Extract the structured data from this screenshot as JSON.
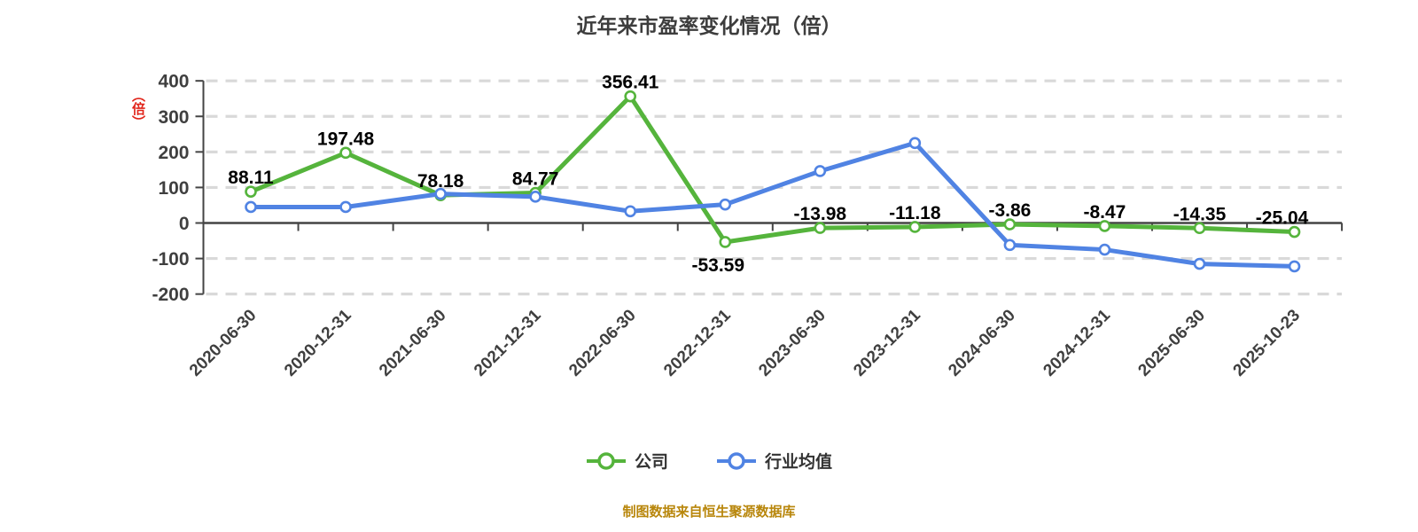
{
  "title": "近年来市盈率变化情况（倍）",
  "y_axis_unit": "（倍）",
  "footer": {
    "source_note": "制图数据来自恒生聚源数据库"
  },
  "colors": {
    "company": "#55b43c",
    "industry": "#5083e3",
    "gridline": "#d9d9d9",
    "axis": "#444444",
    "data_label": "#000000",
    "unit_stamp": "#e1251b",
    "source_note": "#b8860b"
  },
  "chart_data": {
    "type": "line",
    "title": "近年来市盈率变化情况（倍）",
    "categories": [
      "2020-06-30",
      "2020-12-31",
      "2021-06-30",
      "2021-12-31",
      "2022-06-30",
      "2022-12-31",
      "2023-06-30",
      "2023-12-31",
      "2024-06-30",
      "2024-12-31",
      "2025-06-30",
      "2025-10-23"
    ],
    "series": [
      {
        "name": "公司",
        "color": "#55b43c",
        "values": [
          88.11,
          197.48,
          78.18,
          84.77,
          356.41,
          -53.59,
          -13.98,
          -11.18,
          -3.86,
          -8.47,
          -14.35,
          -25.04
        ],
        "show_labels": true
      },
      {
        "name": "行业均值",
        "color": "#5083e3",
        "values": [
          45,
          45,
          82,
          74,
          33,
          52,
          146,
          225,
          -62,
          -75,
          -115,
          -122
        ],
        "show_labels": false,
        "values_estimated_from_pixels": true
      }
    ],
    "ylim": [
      -200,
      400
    ],
    "ytick_interval": 100,
    "yticks": [
      -200,
      -100,
      0,
      100,
      200,
      300,
      400
    ],
    "ylabel_unit": "（倍）",
    "grid": "horizontal dashed, zero line solid",
    "legend_position": "bottom center",
    "x_label_rotation": -45,
    "marker": "white-filled circle with colored ring"
  }
}
